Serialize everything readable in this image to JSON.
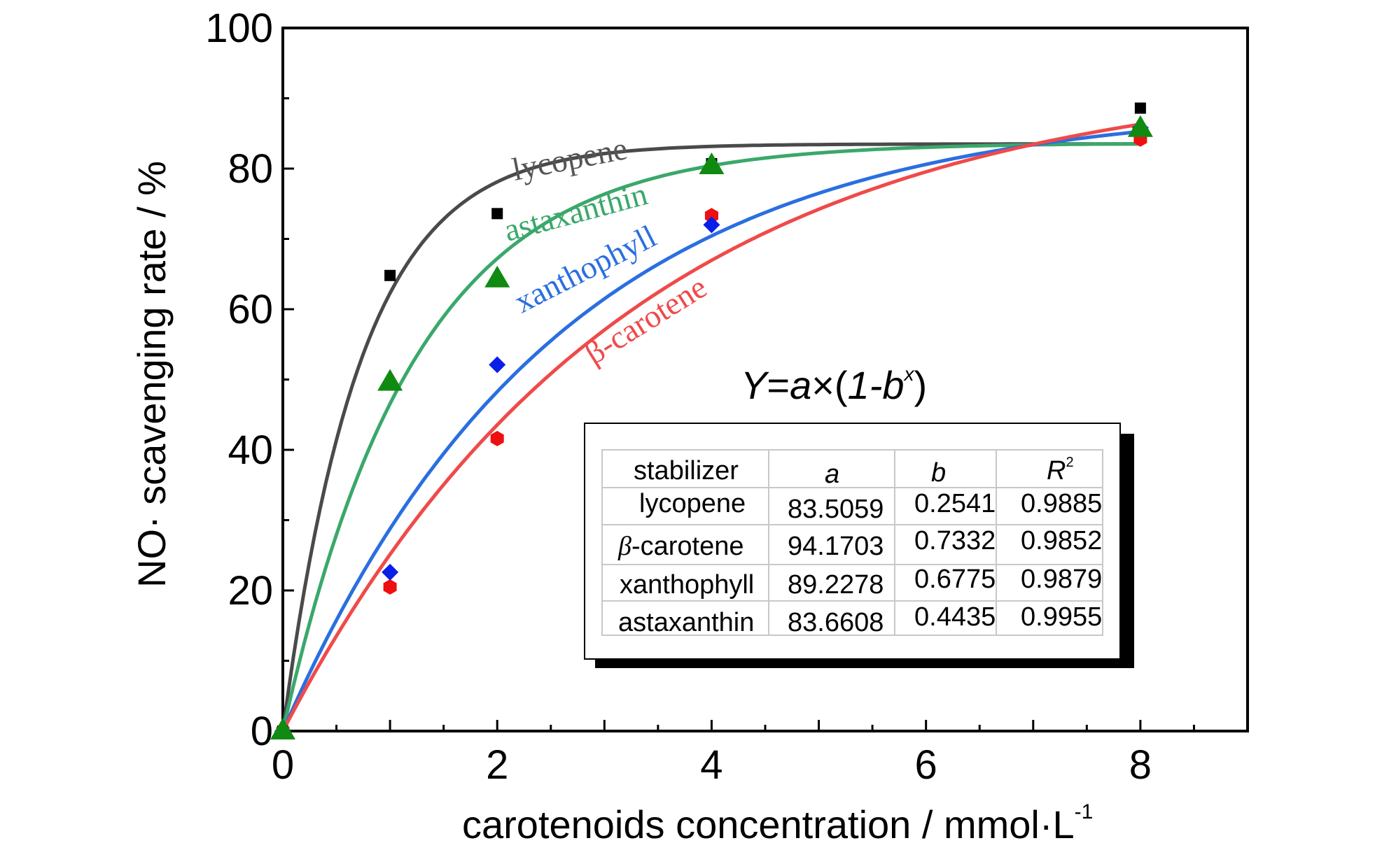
{
  "chart_data": {
    "type": "scatter",
    "title": "",
    "xlabel": "carotenoids concentration / mmol·L",
    "xlabel_sup": "-1",
    "ylabel": "NO· scavenging rate / %",
    "xlim": [
      0,
      9
    ],
    "ylim": [
      0,
      100
    ],
    "xticks": [
      0,
      2,
      4,
      6,
      8
    ],
    "yticks": [
      0,
      20,
      40,
      60,
      80,
      100
    ],
    "series": [
      {
        "name": "lycopene",
        "color": "#4a4a4a",
        "marker": "square",
        "marker_color": "#000000",
        "x": [
          0,
          1,
          2,
          4,
          8
        ],
        "y": [
          0,
          64.8,
          73.6,
          80.7,
          88.6
        ],
        "fit": {
          "a": 83.5059,
          "b": 0.2541
        }
      },
      {
        "name": "astaxanthin",
        "color": "#3aa86b",
        "marker": "triangle",
        "marker_color": "#108a10",
        "x": [
          0,
          1,
          2,
          4,
          8
        ],
        "y": [
          0,
          49.6,
          64.3,
          80.4,
          85.7
        ],
        "fit": {
          "a": 83.6608,
          "b": 0.4435
        }
      },
      {
        "name": "xanthophyll",
        "color": "#2a6fe0",
        "marker": "diamond",
        "marker_color": "#0a1ee8",
        "x": [
          0,
          1,
          2,
          4,
          8
        ],
        "y": [
          0,
          22.6,
          52.1,
          72.0,
          85.8
        ],
        "fit": {
          "a": 89.2278,
          "b": 0.6775
        }
      },
      {
        "name": "β-carotene",
        "color": "#ef4a4a",
        "marker": "hexagon",
        "marker_color": "#ee1010",
        "x": [
          0,
          1,
          2,
          4,
          8
        ],
        "y": [
          0,
          20.5,
          41.6,
          73.3,
          84.2
        ],
        "fit": {
          "a": 94.1703,
          "b": 0.7332
        }
      }
    ],
    "curve_labels": [
      "lycopene",
      "astaxanthin",
      "xanthophyll",
      "β-carotene"
    ],
    "formula": {
      "y": "Y",
      "eq": "=",
      "a": "a",
      "times": "×",
      "open": "(",
      "one": "1-",
      "b": "b",
      "exp": "x",
      "close": ")"
    },
    "table": {
      "headers": [
        "stabilizer",
        "a",
        "b",
        "R",
        "2"
      ],
      "rows": [
        {
          "name": "lycopene",
          "a": "83.5059",
          "b": "0.2541",
          "r2": "0.9885"
        },
        {
          "prefix": "β",
          "name": "-carotene",
          "a": "94.1703",
          "b": "0.7332",
          "r2": "0.9852"
        },
        {
          "name": "xanthophyll",
          "a": "89.2278",
          "b": "0.6775",
          "r2": "0.9879"
        },
        {
          "name": "astaxanthin",
          "a": "83.6608",
          "b": "0.4435",
          "r2": "0.9955"
        }
      ]
    }
  }
}
